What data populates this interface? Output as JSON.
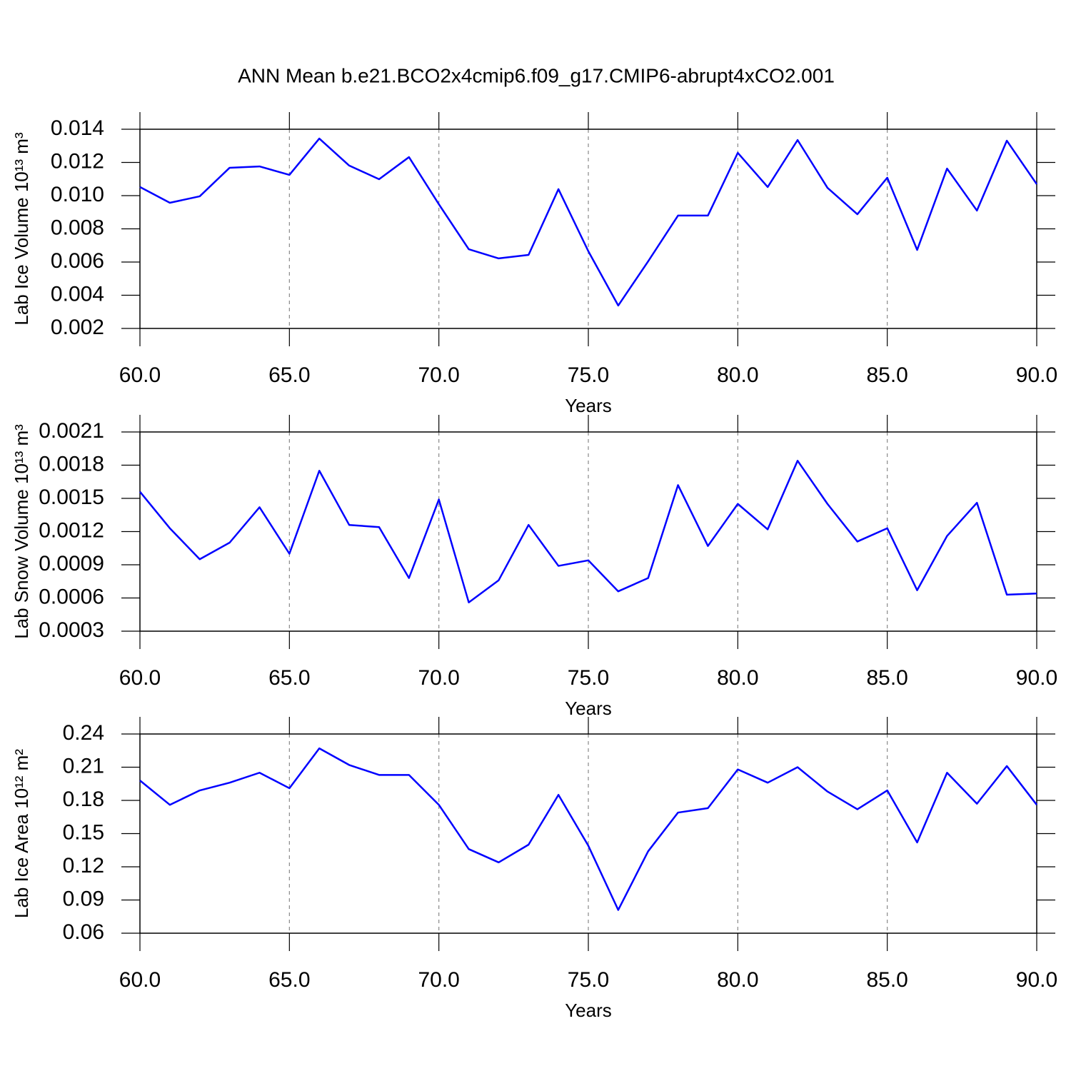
{
  "title": "ANN Mean b.e21.BCO2x4cmip6.f09_g17.CMIP6-abrupt4xCO2.001",
  "chart_data": [
    {
      "type": "line",
      "ylabel": "Lab Ice Volume 10¹³ m³",
      "xlabel": "Years",
      "color": "#0000ff",
      "grid": true,
      "x": [
        60,
        61,
        62,
        63,
        64,
        65,
        66,
        67,
        68,
        69,
        70,
        71,
        72,
        73,
        74,
        75,
        76,
        77,
        78,
        79,
        80,
        81,
        82,
        83,
        84,
        85,
        86,
        87,
        88,
        89,
        90
      ],
      "values": [
        0.01052,
        0.00957,
        0.00996,
        0.01168,
        0.01176,
        0.01125,
        0.01344,
        0.01181,
        0.01099,
        0.01232,
        0.00948,
        0.00677,
        0.00622,
        0.00643,
        0.01039,
        0.00665,
        0.00338,
        0.00604,
        0.0088,
        0.0088,
        0.01258,
        0.01052,
        0.01335,
        0.01047,
        0.00888,
        0.01108,
        0.00673,
        0.01163,
        0.0091,
        0.01331,
        0.01069
      ],
      "xlim": [
        60,
        90
      ],
      "xticks": [
        {
          "value": 60,
          "label": "60.0"
        },
        {
          "value": 65,
          "label": "65.0"
        },
        {
          "value": 70,
          "label": "70.0"
        },
        {
          "value": 75,
          "label": "75.0"
        },
        {
          "value": 80,
          "label": "80.0"
        },
        {
          "value": 85,
          "label": "85.0"
        },
        {
          "value": 90,
          "label": "90.0"
        }
      ],
      "ylim": [
        0.002,
        0.014
      ],
      "yticks": [
        0.002,
        0.004,
        0.006,
        0.008,
        {
          "value": 0.01,
          "label": "0.010"
        },
        0.012,
        0.014
      ]
    },
    {
      "type": "line",
      "ylabel": "Lab Snow Volume 10¹³ m³",
      "xlabel": "Years",
      "color": "#0000ff",
      "grid": true,
      "x": [
        60,
        61,
        62,
        63,
        64,
        65,
        66,
        67,
        68,
        69,
        70,
        71,
        72,
        73,
        74,
        75,
        76,
        77,
        78,
        79,
        80,
        81,
        82,
        83,
        84,
        85,
        86,
        87,
        88,
        89,
        90
      ],
      "values": [
        0.00156,
        0.00123,
        0.00095,
        0.0011,
        0.00142,
        0.001,
        0.00175,
        0.00126,
        0.00124,
        0.00078,
        0.00149,
        0.00056,
        0.00076,
        0.00126,
        0.00089,
        0.00094,
        0.00066,
        0.00078,
        0.00162,
        0.00107,
        0.00145,
        0.00122,
        0.00184,
        0.00145,
        0.00111,
        0.00123,
        0.00067,
        0.00116,
        0.00146,
        0.00063,
        0.00064
      ],
      "xlim": [
        60,
        90
      ],
      "xticks": [
        {
          "value": 60,
          "label": "60.0"
        },
        {
          "value": 65,
          "label": "65.0"
        },
        {
          "value": 70,
          "label": "70.0"
        },
        {
          "value": 75,
          "label": "75.0"
        },
        {
          "value": 80,
          "label": "80.0"
        },
        {
          "value": 85,
          "label": "85.0"
        },
        {
          "value": 90,
          "label": "90.0"
        }
      ],
      "ylim": [
        0.0003,
        0.0021
      ],
      "yticks": [
        0.0003,
        0.0006,
        0.0009,
        0.0012,
        0.0015,
        0.0018,
        0.0021
      ]
    },
    {
      "type": "line",
      "ylabel": "Lab Ice Area 10¹² m²",
      "xlabel": "Years",
      "color": "#0000ff",
      "grid": true,
      "x": [
        60,
        61,
        62,
        63,
        64,
        65,
        66,
        67,
        68,
        69,
        70,
        71,
        72,
        73,
        74,
        75,
        76,
        77,
        78,
        79,
        80,
        81,
        82,
        83,
        84,
        85,
        86,
        87,
        88,
        89,
        90
      ],
      "values": [
        0.198,
        0.176,
        0.189,
        0.196,
        0.205,
        0.191,
        0.227,
        0.212,
        0.203,
        0.203,
        0.176,
        0.136,
        0.124,
        0.14,
        0.185,
        0.139,
        0.081,
        0.134,
        0.169,
        0.173,
        0.208,
        0.196,
        0.21,
        0.188,
        0.172,
        0.189,
        0.142,
        0.205,
        0.177,
        0.211,
        0.176
      ],
      "xlim": [
        60,
        90
      ],
      "xticks": [
        {
          "value": 60,
          "label": "60.0"
        },
        {
          "value": 65,
          "label": "65.0"
        },
        {
          "value": 70,
          "label": "70.0"
        },
        {
          "value": 75,
          "label": "75.0"
        },
        {
          "value": 80,
          "label": "80.0"
        },
        {
          "value": 85,
          "label": "85.0"
        },
        {
          "value": 90,
          "label": "90.0"
        }
      ],
      "ylim": [
        0.06,
        0.24
      ],
      "yticks": [
        0.06,
        0.09,
        0.12,
        0.15,
        0.18,
        0.21,
        0.24
      ]
    }
  ]
}
